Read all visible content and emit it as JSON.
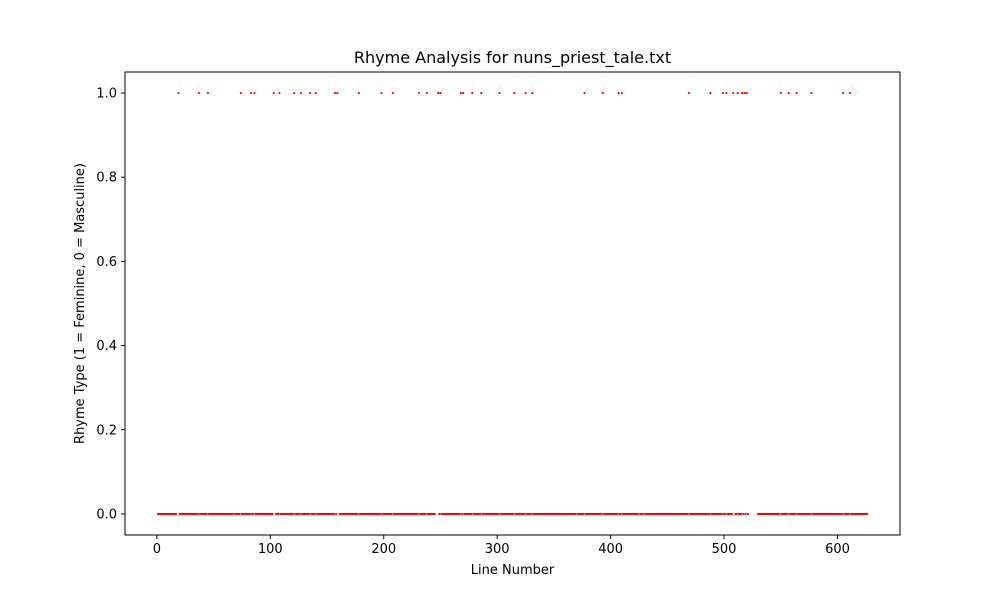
{
  "chart_data": {
    "type": "scatter",
    "title": "Rhyme Analysis for nuns_priest_tale.txt",
    "xlabel": "Line Number",
    "ylabel": "Rhyme Type (1 = Feminine, 0 = Masculine)",
    "xlim": [
      -28.1,
      655.1
    ],
    "ylim": [
      -0.05,
      1.05
    ],
    "xticks": [
      0,
      100,
      200,
      300,
      400,
      500,
      600
    ],
    "xtick_labels": [
      "0",
      "100",
      "200",
      "300",
      "400",
      "500",
      "600"
    ],
    "yticks": [
      0.0,
      0.2,
      0.4,
      0.6,
      0.8,
      1.0
    ],
    "ytick_labels": [
      "0.0",
      "0.2",
      "0.4",
      "0.6",
      "0.8",
      "1.0"
    ],
    "grid": false,
    "marker_color": "#ff0000",
    "n_lines": 626,
    "feminine_lines": [
      19,
      37,
      45,
      74,
      83,
      86,
      103,
      108,
      121,
      127,
      135,
      140,
      157,
      159,
      178,
      198,
      208,
      231,
      238,
      248,
      250,
      268,
      270,
      278,
      286,
      302,
      315,
      325,
      331,
      377,
      393,
      407,
      410,
      469,
      488,
      499,
      502,
      508,
      512,
      516,
      518,
      520,
      550,
      557,
      564,
      577,
      605,
      611
    ],
    "masculine_gaps": [
      18,
      68,
      104,
      160,
      246,
      247,
      370,
      425,
      429,
      509,
      522,
      523,
      524,
      525,
      526,
      527,
      528,
      529
    ]
  }
}
